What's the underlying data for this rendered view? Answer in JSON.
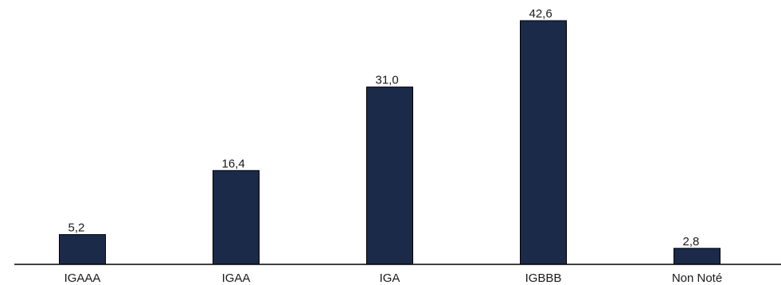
{
  "chart_data": {
    "type": "bar",
    "categories": [
      "IGAAA",
      "IGAA",
      "IGA",
      "IGBBB",
      "Non Noté"
    ],
    "values": [
      5.2,
      16.4,
      31.0,
      42.6,
      2.8
    ],
    "value_labels": [
      "5,2",
      "16,4",
      "31,0",
      "42,6",
      "2,8"
    ],
    "title": "",
    "xlabel": "",
    "ylabel": "",
    "ylim": [
      0,
      42.6
    ],
    "grid": false,
    "legend": "none",
    "bar_color": "#1b2a48"
  }
}
